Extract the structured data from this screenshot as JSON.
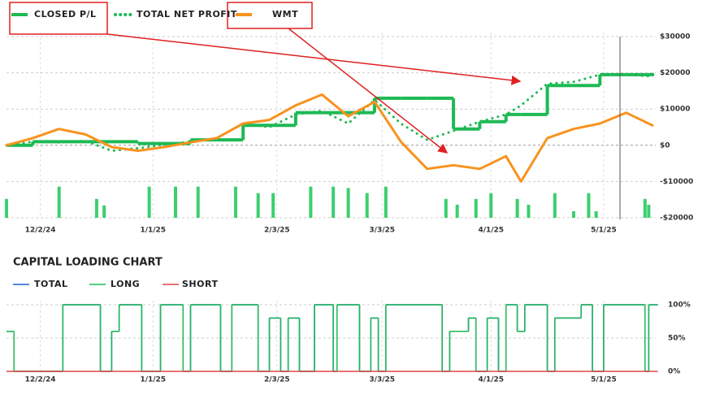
{
  "chart_data": [
    {
      "type": "line",
      "ylim": [
        -20000,
        30000
      ],
      "yticks": [
        {
          "value": 30000,
          "label": "$30000"
        },
        {
          "value": 20000,
          "label": "$20000"
        },
        {
          "value": 10000,
          "label": "$10000"
        },
        {
          "value": 0,
          "label": "$0"
        },
        {
          "value": -10000,
          "label": "-$10000"
        },
        {
          "value": -20000,
          "label": "-$20000"
        }
      ],
      "xlim": [
        "2024-11-23",
        "2025-05-14"
      ],
      "xticks": [
        {
          "value": "2024-12-02",
          "label": "12/2/24"
        },
        {
          "value": "2025-01-01",
          "label": "1/1/25"
        },
        {
          "value": "2025-02-03",
          "label": "2/3/25"
        },
        {
          "value": "2025-03-03",
          "label": "3/3/25"
        },
        {
          "value": "2025-04-01",
          "label": "4/1/25"
        },
        {
          "value": "2025-05-01",
          "label": "5/1/25"
        }
      ],
      "grid": true,
      "x": [
        "2024-11-23",
        "2024-11-30",
        "2024-12-07",
        "2024-12-14",
        "2024-12-21",
        "2024-12-28",
        "2025-01-04",
        "2025-01-11",
        "2025-01-18",
        "2025-01-25",
        "2025-02-01",
        "2025-02-08",
        "2025-02-15",
        "2025-02-22",
        "2025-03-01",
        "2025-03-08",
        "2025-03-15",
        "2025-03-22",
        "2025-03-29",
        "2025-04-05",
        "2025-04-09",
        "2025-04-16",
        "2025-04-23",
        "2025-04-30",
        "2025-05-07",
        "2025-05-14"
      ],
      "series": [
        {
          "name": "CLOSED P/L",
          "color": "#1db954",
          "style": "step",
          "values": [
            0,
            1000,
            1000,
            1000,
            1000,
            500,
            500,
            1500,
            1500,
            5500,
            5500,
            9000,
            9000,
            9000,
            13000,
            13000,
            13000,
            4500,
            6500,
            8500,
            8500,
            16500,
            16500,
            19500,
            19500,
            19500
          ]
        },
        {
          "name": "TOTAL NET PROFIT",
          "color": "#1db954",
          "style": "dotted",
          "values": [
            0,
            1000,
            800,
            1200,
            -1500,
            -800,
            200,
            1000,
            2000,
            6000,
            5000,
            8500,
            9500,
            6000,
            12500,
            6000,
            1500,
            4000,
            6500,
            8500,
            11000,
            17000,
            17500,
            19500,
            19500,
            19000
          ]
        },
        {
          "name": "WMT",
          "color": "#f7931e",
          "style": "solid",
          "values": [
            0,
            2000,
            4500,
            3000,
            -500,
            -1500,
            -500,
            800,
            2000,
            6000,
            7000,
            11000,
            14000,
            8000,
            12000,
            1000,
            -6500,
            -5500,
            -6500,
            -3000,
            -10000,
            2000,
            4500,
            6000,
            9000,
            5500
          ]
        }
      ],
      "bars": {
        "color": "#3ccf6e",
        "x": [
          "2024-11-23",
          "2024-12-07",
          "2024-12-17",
          "2024-12-19",
          "2024-12-31",
          "2025-01-07",
          "2025-01-13",
          "2025-01-23",
          "2025-01-29",
          "2025-02-02",
          "2025-02-12",
          "2025-02-18",
          "2025-02-22",
          "2025-02-27",
          "2025-03-04",
          "2025-03-20",
          "2025-03-23",
          "2025-03-28",
          "2025-04-01",
          "2025-04-08",
          "2025-04-11",
          "2025-04-18",
          "2025-04-23",
          "2025-04-27",
          "2025-04-29",
          "2025-05-12",
          "2025-05-13"
        ],
        "values": [
          -14800,
          -11400,
          -14800,
          -16600,
          -11400,
          -11400,
          -11400,
          -11400,
          -13200,
          -13200,
          -11400,
          -11400,
          -11800,
          -13200,
          -11400,
          -14800,
          -16400,
          -14800,
          -13200,
          -14800,
          -16400,
          -13200,
          -18200,
          -13200,
          -18200,
          -14800,
          -16400
        ]
      }
    },
    {
      "type": "line",
      "title": "CAPITAL LOADING CHART",
      "ylim": [
        0,
        100
      ],
      "yticks": [
        {
          "value": 100,
          "label": "100%"
        },
        {
          "value": 50,
          "label": "50%"
        },
        {
          "value": 0,
          "label": "0%"
        }
      ],
      "xlim": [
        "2024-11-23",
        "2025-05-14"
      ],
      "xticks": [
        {
          "value": "2024-12-02",
          "label": "12/2/24"
        },
        {
          "value": "2025-01-01",
          "label": "1/1/25"
        },
        {
          "value": "2025-02-03",
          "label": "2/3/25"
        },
        {
          "value": "2025-03-03",
          "label": "3/3/25"
        },
        {
          "value": "2025-04-01",
          "label": "4/1/25"
        },
        {
          "value": "2025-05-01",
          "label": "5/1/25"
        }
      ],
      "grid": true,
      "x": [
        "2024-11-23",
        "2024-11-25",
        "2024-12-08",
        "2024-12-18",
        "2024-12-21",
        "2024-12-23",
        "2024-12-29",
        "2025-01-03",
        "2025-01-09",
        "2025-01-11",
        "2025-01-19",
        "2025-01-22",
        "2025-01-29",
        "2025-02-01",
        "2025-02-04",
        "2025-02-06",
        "2025-02-09",
        "2025-02-13",
        "2025-02-18",
        "2025-02-19",
        "2025-02-25",
        "2025-02-28",
        "2025-03-02",
        "2025-03-04",
        "2025-03-19",
        "2025-03-21",
        "2025-03-26",
        "2025-03-28",
        "2025-03-31",
        "2025-04-03",
        "2025-04-05",
        "2025-04-08",
        "2025-04-10",
        "2025-04-16",
        "2025-04-18",
        "2025-04-25",
        "2025-04-28",
        "2025-05-01",
        "2025-05-12",
        "2025-05-13",
        "2025-05-15"
      ],
      "series": [
        {
          "name": "TOTAL",
          "color": "#1f5fd1",
          "values": [
            60,
            0,
            100,
            0,
            60,
            100,
            0,
            100,
            0,
            100,
            0,
            100,
            0,
            80,
            0,
            80,
            0,
            100,
            0,
            100,
            0,
            80,
            0,
            100,
            0,
            60,
            80,
            0,
            80,
            0,
            100,
            60,
            100,
            0,
            80,
            100,
            0,
            100,
            0,
            100,
            100
          ]
        },
        {
          "name": "LONG",
          "color": "#1db954",
          "values": [
            60,
            0,
            100,
            0,
            60,
            100,
            0,
            100,
            0,
            100,
            0,
            100,
            0,
            80,
            0,
            80,
            0,
            100,
            0,
            100,
            0,
            80,
            0,
            100,
            0,
            60,
            80,
            0,
            80,
            0,
            100,
            60,
            100,
            0,
            80,
            100,
            0,
            100,
            0,
            100,
            100
          ]
        },
        {
          "name": "SHORT",
          "color": "#e04545",
          "values": [
            0,
            0,
            0,
            0,
            0,
            0,
            0,
            0,
            0,
            0,
            0,
            0,
            0,
            0,
            0,
            0,
            0,
            0,
            0,
            0,
            0,
            0,
            0,
            0,
            0,
            0,
            0,
            0,
            0,
            0,
            0,
            0,
            0,
            0,
            0,
            0,
            0,
            0,
            0,
            0,
            0
          ]
        }
      ]
    }
  ]
}
